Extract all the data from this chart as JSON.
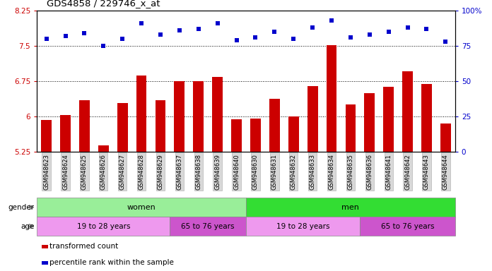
{
  "title": "GDS4858 / 229746_x_at",
  "samples": [
    "GSM948623",
    "GSM948624",
    "GSM948625",
    "GSM948626",
    "GSM948627",
    "GSM948628",
    "GSM948629",
    "GSM948637",
    "GSM948638",
    "GSM948639",
    "GSM948640",
    "GSM948630",
    "GSM948631",
    "GSM948632",
    "GSM948633",
    "GSM948634",
    "GSM948635",
    "GSM948636",
    "GSM948641",
    "GSM948642",
    "GSM948643",
    "GSM948644"
  ],
  "transformed_count": [
    5.92,
    6.03,
    6.35,
    5.38,
    6.28,
    6.88,
    6.35,
    6.76,
    6.76,
    6.84,
    5.94,
    5.96,
    6.38,
    6.0,
    6.65,
    7.52,
    6.26,
    6.5,
    6.63,
    6.96,
    6.7,
    5.85
  ],
  "percentile_rank": [
    80,
    82,
    84,
    75,
    80,
    91,
    83,
    86,
    87,
    91,
    79,
    81,
    85,
    80,
    88,
    93,
    81,
    83,
    85,
    88,
    87,
    78
  ],
  "ylim_left": [
    5.25,
    8.25
  ],
  "ylim_right": [
    0,
    100
  ],
  "yticks_left": [
    5.25,
    6.0,
    6.75,
    7.5,
    8.25
  ],
  "yticks_right": [
    0,
    25,
    50,
    75,
    100
  ],
  "ytick_labels_left": [
    "5.25",
    "6",
    "6.75",
    "7.5",
    "8.25"
  ],
  "ytick_labels_right": [
    "0",
    "25",
    "50",
    "75",
    "100%"
  ],
  "bar_color": "#cc0000",
  "dot_color": "#0000cc",
  "gender_groups": [
    {
      "label": "women",
      "start": 0,
      "end": 11,
      "color": "#99ee99"
    },
    {
      "label": "men",
      "start": 11,
      "end": 22,
      "color": "#33dd33"
    }
  ],
  "age_groups": [
    {
      "label": "19 to 28 years",
      "start": 0,
      "end": 7,
      "color": "#ee99ee"
    },
    {
      "label": "65 to 76 years",
      "start": 7,
      "end": 11,
      "color": "#cc55cc"
    },
    {
      "label": "19 to 28 years",
      "start": 11,
      "end": 17,
      "color": "#ee99ee"
    },
    {
      "label": "65 to 76 years",
      "start": 17,
      "end": 22,
      "color": "#cc55cc"
    }
  ],
  "legend_red_label": "transformed count",
  "legend_blue_label": "percentile rank within the sample",
  "gender_label": "gender",
  "age_label": "age",
  "background_color": "#ffffff"
}
